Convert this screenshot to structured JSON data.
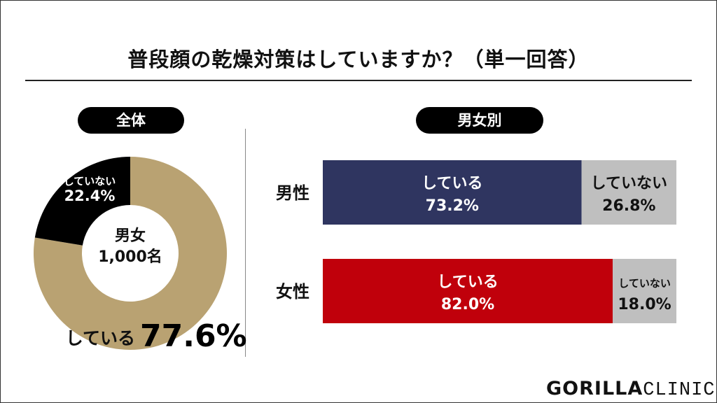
{
  "title": "普段顔の乾燥対策はしていますか？（単一回答）",
  "logo": {
    "part1": "GORILLA",
    "part2": "CLINIC"
  },
  "chart_data": [
    {
      "type": "pie",
      "variant": "donut",
      "panel_label": "全体",
      "center_label": [
        "男女",
        "1,000名"
      ],
      "slices": [
        {
          "label": "している",
          "value": 77.6,
          "value_label": "77.6%",
          "color": "#b9a272"
        },
        {
          "label": "していない",
          "value": 22.4,
          "value_label": "22.4%",
          "color": "#000000"
        }
      ]
    },
    {
      "type": "bar",
      "orientation": "horizontal",
      "stacked": true,
      "panel_label": "男女別",
      "categories": [
        "男性",
        "女性"
      ],
      "xlim": [
        0,
        100
      ],
      "series": [
        {
          "name": "している",
          "values": [
            73.2,
            82.0
          ],
          "value_labels": [
            "73.2%",
            "82.0%"
          ],
          "colors": [
            "#2f3560",
            "#c0000b"
          ]
        },
        {
          "name": "していない",
          "values": [
            26.8,
            18.0
          ],
          "value_labels": [
            "26.8%",
            "18.0%"
          ],
          "colors": [
            "#bfbfbf",
            "#bfbfbf"
          ]
        }
      ]
    }
  ]
}
